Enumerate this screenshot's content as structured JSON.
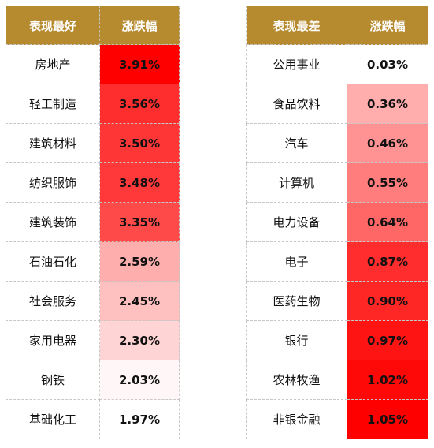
{
  "chart_data": {
    "type": "table",
    "headers": {
      "best_sector": "表现最好",
      "best_change": "涨跌幅",
      "worst_sector": "表现最差",
      "worst_change": "涨跌幅"
    },
    "best": [
      {
        "sector": "房地产",
        "change": "3.91%",
        "value": 3.91
      },
      {
        "sector": "轻工制造",
        "change": "3.56%",
        "value": 3.56
      },
      {
        "sector": "建筑材料",
        "change": "3.50%",
        "value": 3.5
      },
      {
        "sector": "纺织服饰",
        "change": "3.48%",
        "value": 3.48
      },
      {
        "sector": "建筑装饰",
        "change": "3.35%",
        "value": 3.35
      },
      {
        "sector": "石油石化",
        "change": "2.59%",
        "value": 2.59
      },
      {
        "sector": "社会服务",
        "change": "2.45%",
        "value": 2.45
      },
      {
        "sector": "家用电器",
        "change": "2.30%",
        "value": 2.3
      },
      {
        "sector": "钢铁",
        "change": "2.03%",
        "value": 2.03
      },
      {
        "sector": "基础化工",
        "change": "1.97%",
        "value": 1.97
      }
    ],
    "worst": [
      {
        "sector": "公用事业",
        "change": "0.03%",
        "value": 0.03
      },
      {
        "sector": "食品饮料",
        "change": "0.36%",
        "value": 0.36
      },
      {
        "sector": "汽车",
        "change": "0.46%",
        "value": 0.46
      },
      {
        "sector": "计算机",
        "change": "0.55%",
        "value": 0.55
      },
      {
        "sector": "电力设备",
        "change": "0.64%",
        "value": 0.64
      },
      {
        "sector": "电子",
        "change": "0.87%",
        "value": 0.87
      },
      {
        "sector": "医药生物",
        "change": "0.90%",
        "value": 0.9
      },
      {
        "sector": "银行",
        "change": "0.97%",
        "value": 0.97
      },
      {
        "sector": "农林牧渔",
        "change": "1.02%",
        "value": 1.02
      },
      {
        "sector": "非银金融",
        "change": "1.05%",
        "value": 1.05
      }
    ],
    "colors": {
      "header_bg": "#b68a2f",
      "header_text": "#ffffff",
      "heat_high": "#ff0000",
      "heat_low": "#ffffff"
    }
  }
}
